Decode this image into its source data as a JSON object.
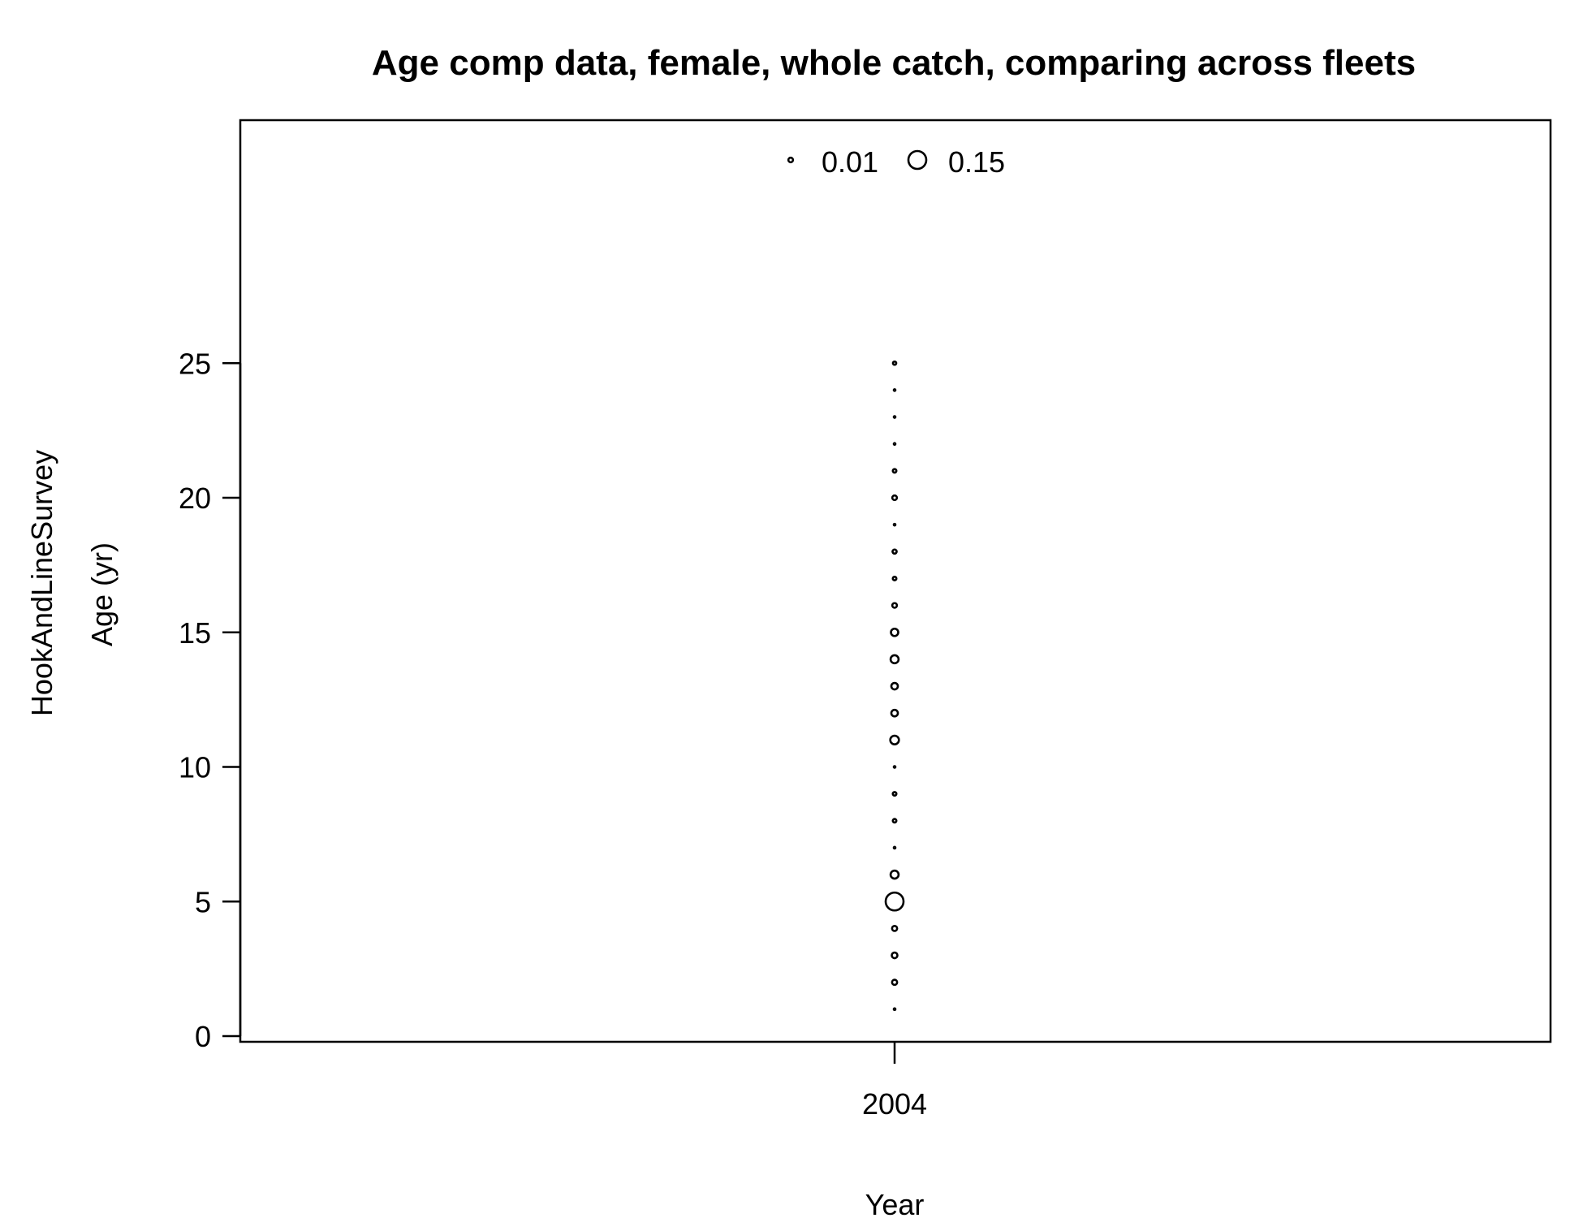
{
  "chart_data": {
    "type": "scatter",
    "title": "Age comp data, female, whole catch, comparing across fleets",
    "xlabel": "Year",
    "ylabel": "Age (yr)",
    "fleet_label": "HookAndLineSurvey",
    "x_ticks": [
      "2004"
    ],
    "y_ticks": [
      0,
      5,
      10,
      15,
      20,
      25
    ],
    "ylim": [
      0,
      25
    ],
    "legend": {
      "placement": "top-center",
      "entries": [
        {
          "label": "0.01",
          "value": 0.01
        },
        {
          "label": "0.15",
          "value": 0.15
        }
      ]
    },
    "series": [
      {
        "x": 2004,
        "points": [
          {
            "age": 1,
            "prop": 0.001
          },
          {
            "age": 2,
            "prop": 0.012
          },
          {
            "age": 3,
            "prop": 0.015
          },
          {
            "age": 4,
            "prop": 0.012
          },
          {
            "age": 5,
            "prop": 0.15
          },
          {
            "age": 6,
            "prop": 0.03
          },
          {
            "age": 7,
            "prop": 0.001
          },
          {
            "age": 8,
            "prop": 0.006
          },
          {
            "age": 9,
            "prop": 0.006
          },
          {
            "age": 10,
            "prop": 0.001
          },
          {
            "age": 11,
            "prop": 0.035
          },
          {
            "age": 12,
            "prop": 0.02
          },
          {
            "age": 13,
            "prop": 0.02
          },
          {
            "age": 14,
            "prop": 0.03
          },
          {
            "age": 15,
            "prop": 0.025
          },
          {
            "age": 16,
            "prop": 0.01
          },
          {
            "age": 17,
            "prop": 0.006
          },
          {
            "age": 18,
            "prop": 0.008
          },
          {
            "age": 19,
            "prop": 0.001
          },
          {
            "age": 20,
            "prop": 0.01
          },
          {
            "age": 21,
            "prop": 0.006
          },
          {
            "age": 22,
            "prop": 0.001
          },
          {
            "age": 23,
            "prop": 0.001
          },
          {
            "age": 24,
            "prop": 0.001
          },
          {
            "age": 25,
            "prop": 0.005
          }
        ]
      }
    ]
  }
}
